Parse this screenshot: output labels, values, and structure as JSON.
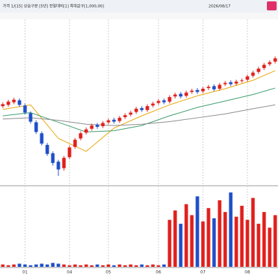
{
  "toolbar": {
    "left": "가격 1/[15] 상승구분 [5년] 전일대비[1] 최대값구[1,000,00]",
    "date": "2026/08/17"
  },
  "chart_data": {
    "type": "candlestick",
    "categories": [
      null,
      null,
      null,
      null,
      "01",
      null,
      null,
      null,
      null,
      null,
      null,
      null,
      "04",
      null,
      null,
      null,
      null,
      null,
      null,
      "05",
      null,
      null,
      null,
      null,
      null,
      null,
      null,
      null,
      "06",
      null,
      null,
      null,
      null,
      null,
      null,
      null,
      "07",
      null,
      null,
      null,
      null,
      null,
      null,
      null,
      "08",
      null,
      null,
      null,
      null,
      null
    ],
    "open": [
      110,
      112,
      116,
      119,
      111,
      99,
      85,
      68,
      50,
      37,
      24,
      14,
      31,
      47,
      60,
      69,
      75,
      81,
      79,
      85,
      89,
      87,
      93,
      97,
      101,
      107,
      104,
      111,
      115,
      119,
      117,
      125,
      129,
      126,
      132,
      135,
      133,
      138,
      141,
      137,
      144,
      147,
      145,
      149,
      151,
      157,
      163,
      169,
      175,
      179
    ],
    "high": [
      116,
      120,
      123,
      122,
      114,
      102,
      88,
      71,
      53,
      40,
      27,
      33,
      49,
      61,
      71,
      77,
      83,
      84,
      87,
      91,
      92,
      95,
      99,
      103,
      109,
      110,
      113,
      117,
      121,
      122,
      127,
      131,
      132,
      134,
      137,
      138,
      140,
      143,
      144,
      146,
      149,
      150,
      151,
      153,
      159,
      165,
      171,
      177,
      181,
      187
    ],
    "low": [
      107,
      109,
      113,
      109,
      97,
      83,
      67,
      49,
      33,
      18,
      2,
      10,
      28,
      44,
      57,
      66,
      72,
      75,
      76,
      82,
      83,
      84,
      90,
      94,
      98,
      101,
      101,
      108,
      112,
      113,
      114,
      122,
      122,
      123,
      129,
      129,
      130,
      135,
      133,
      134,
      141,
      141,
      142,
      146,
      148,
      154,
      160,
      166,
      172,
      176
    ],
    "close": [
      113,
      117,
      120,
      112,
      100,
      86,
      70,
      52,
      36,
      22,
      12,
      30,
      46,
      58,
      68,
      74,
      80,
      78,
      84,
      88,
      86,
      92,
      96,
      100,
      106,
      104,
      110,
      114,
      118,
      116,
      124,
      128,
      125,
      131,
      134,
      132,
      137,
      140,
      136,
      143,
      146,
      144,
      148,
      150,
      156,
      162,
      168,
      174,
      178,
      184
    ],
    "up_color": "#e0201c",
    "down_color": "#1f4fc8",
    "ylim": [
      -10,
      240
    ],
    "moving_averages": [
      {
        "color": "#e8a400",
        "x": [
          0,
          5,
          10,
          15,
          20,
          25,
          30,
          35,
          40,
          45,
          49
        ],
        "values": [
          105,
          112,
          60,
          40,
          76,
          95,
          112,
          126,
          137,
          150,
          165
        ]
      },
      {
        "color": "#3a9a6a",
        "x": [
          0,
          5,
          10,
          15,
          20,
          25,
          30,
          35,
          40,
          45,
          49
        ],
        "values": [
          95,
          100,
          85,
          70,
          72,
          80,
          95,
          108,
          118,
          128,
          138
        ]
      },
      {
        "color": "#888888",
        "x": [
          0,
          5,
          10,
          15,
          20,
          25,
          30,
          35,
          40,
          45,
          49
        ],
        "values": [
          90,
          92,
          88,
          82,
          80,
          82,
          86,
          92,
          98,
          106,
          112
        ]
      }
    ],
    "volume": [
      3,
      2,
      3,
      4,
      3,
      2,
      3,
      4,
      3,
      5,
      4,
      3,
      2,
      3,
      2,
      3,
      2,
      3,
      2,
      3,
      2,
      3,
      2,
      3,
      2,
      3,
      2,
      3,
      2,
      3,
      60,
      72,
      55,
      80,
      66,
      90,
      58,
      75,
      62,
      85,
      70,
      95,
      64,
      78,
      60,
      88,
      55,
      70,
      50,
      66
    ],
    "volume_ylim": [
      0,
      100
    ]
  }
}
